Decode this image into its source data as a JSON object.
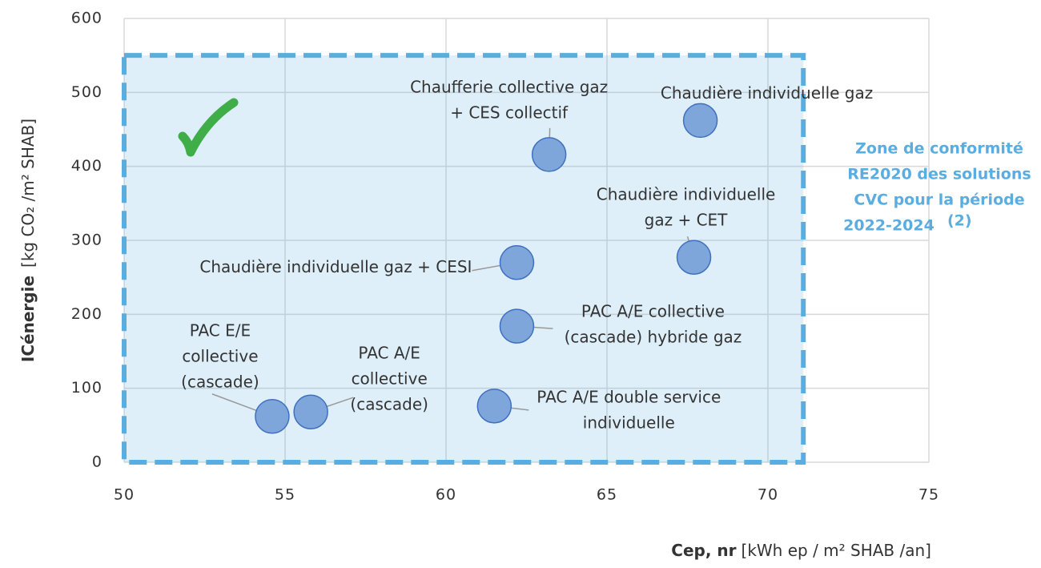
{
  "chart_data": {
    "type": "scatter",
    "xlabel_bold": "Cep, nr",
    "xlabel": "[kWh ep / m² SHAB /an]",
    "ylabel_bold": "ICénergie",
    "ylabel": "[kg CO₂ /m² SHAB]",
    "x": [
      54.6,
      55.8,
      61.5,
      62.2,
      62.2,
      67.7,
      63.2,
      67.9
    ],
    "y": [
      62,
      68,
      76,
      184,
      270,
      277,
      416,
      462
    ],
    "point_labels": [
      [
        "PAC E/E",
        "collective",
        "(cascade)"
      ],
      [
        "PAC A/E",
        "collective",
        "(cascade)"
      ],
      [
        "PAC A/E double service",
        "individuelle"
      ],
      [
        "PAC A/E collective",
        "(cascade) hybride gaz"
      ],
      [
        "Chaudière individuelle gaz + CESI"
      ],
      [
        "Chaudière individuelle",
        "gaz + CET"
      ],
      [
        "Chaufferie collective gaz",
        "+ CES collectif"
      ],
      [
        "Chaudière individuelle gaz"
      ]
    ],
    "color": "#7fa6da",
    "edgecolor": "#3f70c0",
    "xlim": [
      50,
      75
    ],
    "xticks": [
      50,
      55,
      60,
      65,
      70,
      75
    ],
    "ylim": [
      0,
      600
    ],
    "yticks": [
      0,
      100,
      200,
      300,
      400,
      500,
      600
    ],
    "grid": true,
    "zone": {
      "xlim": [
        50,
        71.1
      ],
      "ylim": [
        0,
        550
      ],
      "color": "#5aade0",
      "label": [
        "Zone de conformité",
        "RE2020 des solutions",
        "CVC pour la période",
        "2022-2024"
      ],
      "label_sup": "(2)"
    }
  }
}
